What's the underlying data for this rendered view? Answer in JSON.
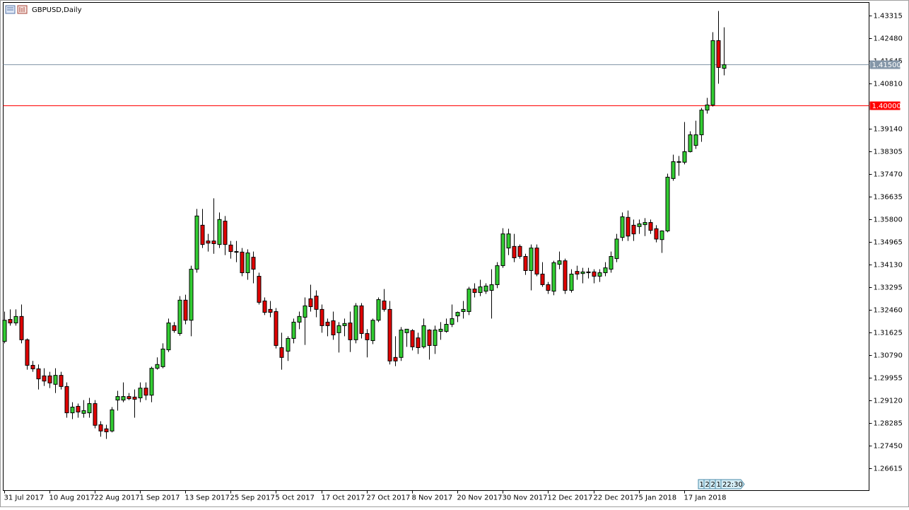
{
  "chart_data": {
    "type": "candlestick",
    "title": "GBPUSD,Daily",
    "categories": [
      "31 Jul 2017",
      null,
      null,
      null,
      null,
      null,
      null,
      null,
      "10 Aug 2017",
      null,
      null,
      null,
      null,
      null,
      null,
      null,
      "22 Aug 2017",
      null,
      null,
      null,
      null,
      null,
      null,
      null,
      "1 Sep 2017",
      null,
      null,
      null,
      null,
      null,
      null,
      null,
      "13 Sep 2017",
      null,
      null,
      null,
      null,
      null,
      null,
      null,
      "25 Sep 2017",
      null,
      null,
      null,
      null,
      null,
      null,
      null,
      "5 Oct 2017",
      null,
      null,
      null,
      null,
      null,
      null,
      null,
      "17 Oct 2017",
      null,
      null,
      null,
      null,
      null,
      null,
      null,
      "27 Oct 2017",
      null,
      null,
      null,
      null,
      null,
      null,
      null,
      "8 Nov 2017",
      null,
      null,
      null,
      null,
      null,
      null,
      null,
      "20 Nov 2017",
      null,
      null,
      null,
      null,
      null,
      null,
      null,
      "30 Nov 2017",
      null,
      null,
      null,
      null,
      null,
      null,
      null,
      "12 Dec 2017",
      null,
      null,
      null,
      null,
      null,
      null,
      null,
      "22 Dec 2017",
      null,
      null,
      null,
      null,
      null,
      null,
      null,
      "5 Jan 2018",
      null,
      null,
      null,
      null,
      null,
      null,
      null,
      "17 Jan 2018",
      null,
      null,
      null,
      null,
      null,
      null,
      null
    ],
    "open": [
      1.313,
      1.3211,
      1.3198,
      1.3222,
      1.3136,
      1.3042,
      1.3029,
      1.3003,
      1.3003,
      1.2972,
      1.3005,
      1.2964,
      1.2867,
      1.2891,
      1.2865,
      1.2867,
      1.2901,
      1.2823,
      1.2808,
      1.28,
      1.2914,
      1.2914,
      1.2927,
      1.2925,
      1.2922,
      1.2958,
      1.2932,
      1.3031,
      1.3037,
      1.3099,
      1.3188,
      1.3159,
      1.3282,
      1.3208,
      1.3396,
      1.3558,
      1.35,
      1.35,
      1.3487,
      1.3573,
      1.3485,
      1.3461,
      1.3459,
      1.3383,
      1.344,
      1.337,
      1.3279,
      1.3248,
      1.324,
      1.3107,
      1.3094,
      1.3141,
      1.3201,
      1.3219,
      1.3287,
      1.3297,
      1.3248,
      1.3201,
      1.3206,
      1.3162,
      1.3188,
      1.3198,
      1.3136,
      1.3261,
      1.3159,
      1.3133,
      1.3208,
      1.3279,
      1.3248,
      1.3071,
      1.3071,
      1.3162,
      1.317,
      1.3143,
      1.311,
      1.3172,
      1.3115,
      1.3167,
      1.3167,
      1.3193,
      1.3224,
      1.324,
      1.324,
      1.3323,
      1.331,
      1.3315,
      1.3318,
      1.3339,
      1.3409,
      1.3474,
      1.348,
      1.348,
      1.3443,
      1.3391,
      1.3474,
      1.3378,
      1.3339,
      1.3315,
      1.3414,
      1.3427,
      1.3318,
      1.3388,
      1.338,
      1.3386,
      1.3386,
      1.337,
      1.3383,
      1.3396,
      1.3435,
      1.3513,
      1.3587,
      1.3558,
      1.3553,
      1.356,
      1.3568,
      1.3545,
      1.3505,
      1.3537,
      1.373,
      1.3792,
      1.379,
      1.3829,
      1.3852,
      1.3891,
      1.3982,
      1.4001,
      1.4238,
      1.4136
    ],
    "high": [
      1.324,
      1.3248,
      1.3248,
      1.3266,
      1.3141,
      1.3058,
      1.3045,
      1.3031,
      1.3018,
      1.3031,
      1.3018,
      1.2979,
      1.2906,
      1.2901,
      1.2914,
      1.2922,
      1.2914,
      1.2836,
      1.2823,
      1.2888,
      1.2948,
      1.2979,
      1.294,
      1.2953,
      1.2979,
      1.2979,
      1.3037,
      1.3071,
      1.3123,
      1.3214,
      1.3201,
      1.3297,
      1.3302,
      1.3409,
      1.3618,
      1.3618,
      1.3526,
      1.3657,
      1.3605,
      1.3592,
      1.35,
      1.35,
      1.3474,
      1.3469,
      1.3461,
      1.3383,
      1.3292,
      1.3279,
      1.3253,
      1.3162,
      1.3149,
      1.3214,
      1.324,
      1.3292,
      1.3339,
      1.3318,
      1.3266,
      1.3214,
      1.324,
      1.3201,
      1.3214,
      1.324,
      1.3271,
      1.3271,
      1.3175,
      1.3214,
      1.3292,
      1.3323,
      1.3279,
      1.3149,
      1.3183,
      1.3175,
      1.3175,
      1.3162,
      1.3214,
      1.3175,
      1.3188,
      1.3201,
      1.3214,
      1.3266,
      1.324,
      1.3279,
      1.3331,
      1.3344,
      1.3357,
      1.3344,
      1.3396,
      1.3422,
      1.3547,
      1.3545,
      1.3526,
      1.3487,
      1.3453,
      1.3487,
      1.3487,
      1.3422,
      1.3349,
      1.3427,
      1.3461,
      1.3435,
      1.3396,
      1.3409,
      1.3401,
      1.3401,
      1.3396,
      1.3396,
      1.3422,
      1.3461,
      1.3526,
      1.3605,
      1.3612,
      1.3579,
      1.3579,
      1.3584,
      1.3579,
      1.3558,
      1.3539,
      1.3748,
      1.3818,
      1.3813,
      1.3938,
      1.3904,
      1.3943,
      1.399,
      1.4027,
      1.4269,
      1.4347,
      1.4287
    ],
    "low": [
      1.3123,
      1.3188,
      1.3188,
      1.3123,
      1.3026,
      1.3018,
      1.2953,
      1.2966,
      1.2958,
      1.294,
      1.2953,
      1.2849,
      1.2844,
      1.2849,
      1.2849,
      1.2849,
      1.281,
      1.2779,
      1.2771,
      1.2795,
      1.2875,
      1.2906,
      1.2914,
      1.2849,
      1.2906,
      1.2914,
      1.2906,
      1.3026,
      1.3031,
      1.3091,
      1.3162,
      1.3151,
      1.3193,
      1.3149,
      1.3383,
      1.3474,
      1.3461,
      1.3453,
      1.3474,
      1.3448,
      1.3435,
      1.3422,
      1.337,
      1.3357,
      1.3344,
      1.3266,
      1.3227,
      1.3219,
      1.3104,
      1.3026,
      1.3058,
      1.3123,
      1.3175,
      1.3117,
      1.324,
      1.3219,
      1.3162,
      1.3149,
      1.3136,
      1.3089,
      1.3149,
      1.3091,
      1.3123,
      1.3141,
      1.3071,
      1.312,
      1.3201,
      1.324,
      1.3045,
      1.3039,
      1.3058,
      1.311,
      1.3097,
      1.3084,
      1.3104,
      1.3063,
      1.3084,
      1.3136,
      1.3162,
      1.3183,
      1.3201,
      1.3214,
      1.3227,
      1.3292,
      1.3297,
      1.3305,
      1.3214,
      1.3326,
      1.3401,
      1.3448,
      1.3422,
      1.3435,
      1.3375,
      1.3318,
      1.337,
      1.3331,
      1.3305,
      1.33,
      1.3396,
      1.3305,
      1.331,
      1.3357,
      1.3344,
      1.3362,
      1.3344,
      1.3349,
      1.337,
      1.3383,
      1.3422,
      1.35,
      1.35,
      1.35,
      1.3526,
      1.3518,
      1.3526,
      1.3495,
      1.3456,
      1.3532,
      1.3722,
      1.374,
      1.3782,
      1.3826,
      1.3839,
      1.3865,
      1.3969,
      1.3995,
      1.4079,
      1.411
    ],
    "close": [
      1.3208,
      1.3198,
      1.3222,
      1.3136,
      1.3042,
      1.3029,
      1.2992,
      1.2984,
      1.2977,
      1.3005,
      1.2964,
      1.2867,
      1.2888,
      1.287,
      1.2875,
      1.2901,
      1.2821,
      1.28,
      1.2797,
      1.2878,
      1.2927,
      1.2927,
      1.2919,
      1.2917,
      1.2958,
      1.2932,
      1.3031,
      1.3045,
      1.3102,
      1.3198,
      1.317,
      1.3282,
      1.3208,
      1.3396,
      1.3592,
      1.3487,
      1.3492,
      1.349,
      1.3579,
      1.3487,
      1.3461,
      1.3459,
      1.3383,
      1.3456,
      1.3396,
      1.3274,
      1.3237,
      1.3237,
      1.3115,
      1.3071,
      1.3141,
      1.3201,
      1.3222,
      1.3261,
      1.3258,
      1.3248,
      1.3188,
      1.3188,
      1.3154,
      1.3188,
      1.3196,
      1.3136,
      1.3261,
      1.3159,
      1.3136,
      1.3208,
      1.3284,
      1.3248,
      1.3058,
      1.3058,
      1.3172,
      1.3175,
      1.311,
      1.3107,
      1.3188,
      1.3115,
      1.3172,
      1.3175,
      1.3193,
      1.3214,
      1.3237,
      1.3248,
      1.3323,
      1.331,
      1.3331,
      1.3334,
      1.3339,
      1.3409,
      1.3526,
      1.3526,
      1.3438,
      1.3443,
      1.3391,
      1.3474,
      1.3378,
      1.3339,
      1.3318,
      1.342,
      1.3427,
      1.3318,
      1.3378,
      1.3378,
      1.3386,
      1.3383,
      1.337,
      1.3383,
      1.3401,
      1.3443,
      1.3507,
      1.3589,
      1.3518,
      1.3526,
      1.3563,
      1.3568,
      1.3539,
      1.3507,
      1.3537,
      1.3735,
      1.3792,
      1.379,
      1.3829,
      1.3891,
      1.3891,
      1.3982,
      1.4001,
      1.4238,
      1.4139,
      1.4149
    ],
    "up_color": "#32cd32",
    "down_color": "#e00000",
    "ylim": [
      1.25807,
      1.43784
    ],
    "yticks": [
      {
        "value": 1.43315,
        "label": "1.43315"
      },
      {
        "value": 1.4248,
        "label": "1.42480"
      },
      {
        "value": 1.41645,
        "label": "1.41645"
      },
      {
        "value": 1.4081,
        "label": "1.40810"
      },
      {
        "value": 1.3914,
        "label": "1.39140"
      },
      {
        "value": 1.38305,
        "label": "1.38305"
      },
      {
        "value": 1.3747,
        "label": "1.37470"
      },
      {
        "value": 1.36635,
        "label": "1.36635"
      },
      {
        "value": 1.358,
        "label": "1.35800"
      },
      {
        "value": 1.34965,
        "label": "1.34965"
      },
      {
        "value": 1.3413,
        "label": "1.34130"
      },
      {
        "value": 1.33295,
        "label": "1.33295"
      },
      {
        "value": 1.3246,
        "label": "1.32460"
      },
      {
        "value": 1.31625,
        "label": "1.31625"
      },
      {
        "value": 1.3079,
        "label": "1.30790"
      },
      {
        "value": 1.29955,
        "label": "1.29955"
      },
      {
        "value": 1.2912,
        "label": "1.29120"
      },
      {
        "value": 1.28285,
        "label": "1.28285"
      },
      {
        "value": 1.2745,
        "label": "1.27450"
      },
      {
        "value": 1.26615,
        "label": "1.26615"
      }
    ],
    "price_lines": [
      {
        "value": 1.415,
        "label": "1.41500",
        "color": "#8496a8"
      },
      {
        "value": 1.4,
        "label": "1.40000",
        "color": "#ff0000"
      }
    ],
    "session_boxes": [
      "1",
      "2",
      "2",
      "1"
    ],
    "countdown": "22:30"
  }
}
